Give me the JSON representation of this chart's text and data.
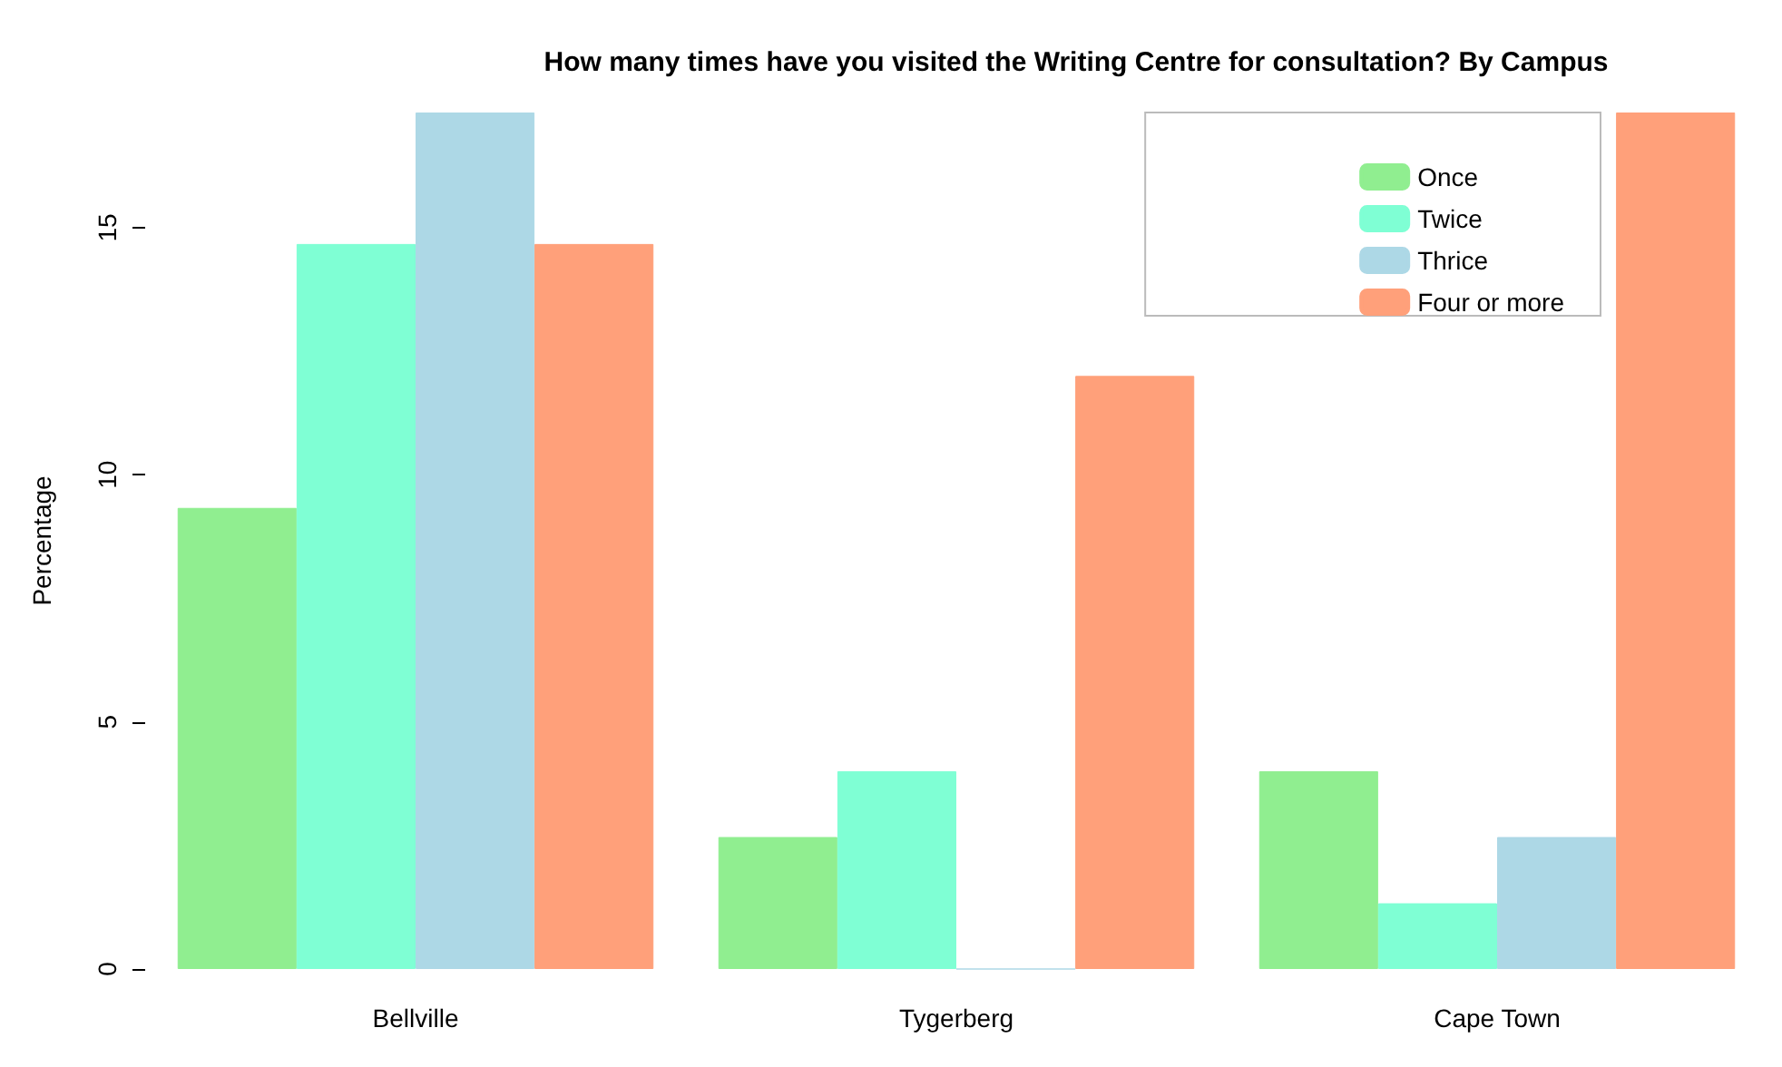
{
  "chart_data": {
    "type": "bar",
    "title": "How many times have you visited the Writing Centre for consultation? By Campus",
    "ylabel": "Percentage",
    "categories": [
      "Bellville",
      "Tygerberg",
      "Cape Town"
    ],
    "series": [
      {
        "name": "Once",
        "color": "#90ee90",
        "values": [
          9.33,
          2.67,
          4
        ]
      },
      {
        "name": "Twice",
        "color": "#7fffd4",
        "values": [
          14.67,
          4,
          1.33
        ]
      },
      {
        "name": "Thrice",
        "color": "#add8e6",
        "values": [
          17.33,
          0,
          2.67
        ]
      },
      {
        "name": "Four or more",
        "color": "#ffa07a",
        "values": [
          14.67,
          12,
          17.33
        ]
      }
    ],
    "ylim": [
      0,
      17.33
    ],
    "yticks": [
      0,
      5,
      10,
      15
    ],
    "grid": false,
    "legend": "top right"
  }
}
